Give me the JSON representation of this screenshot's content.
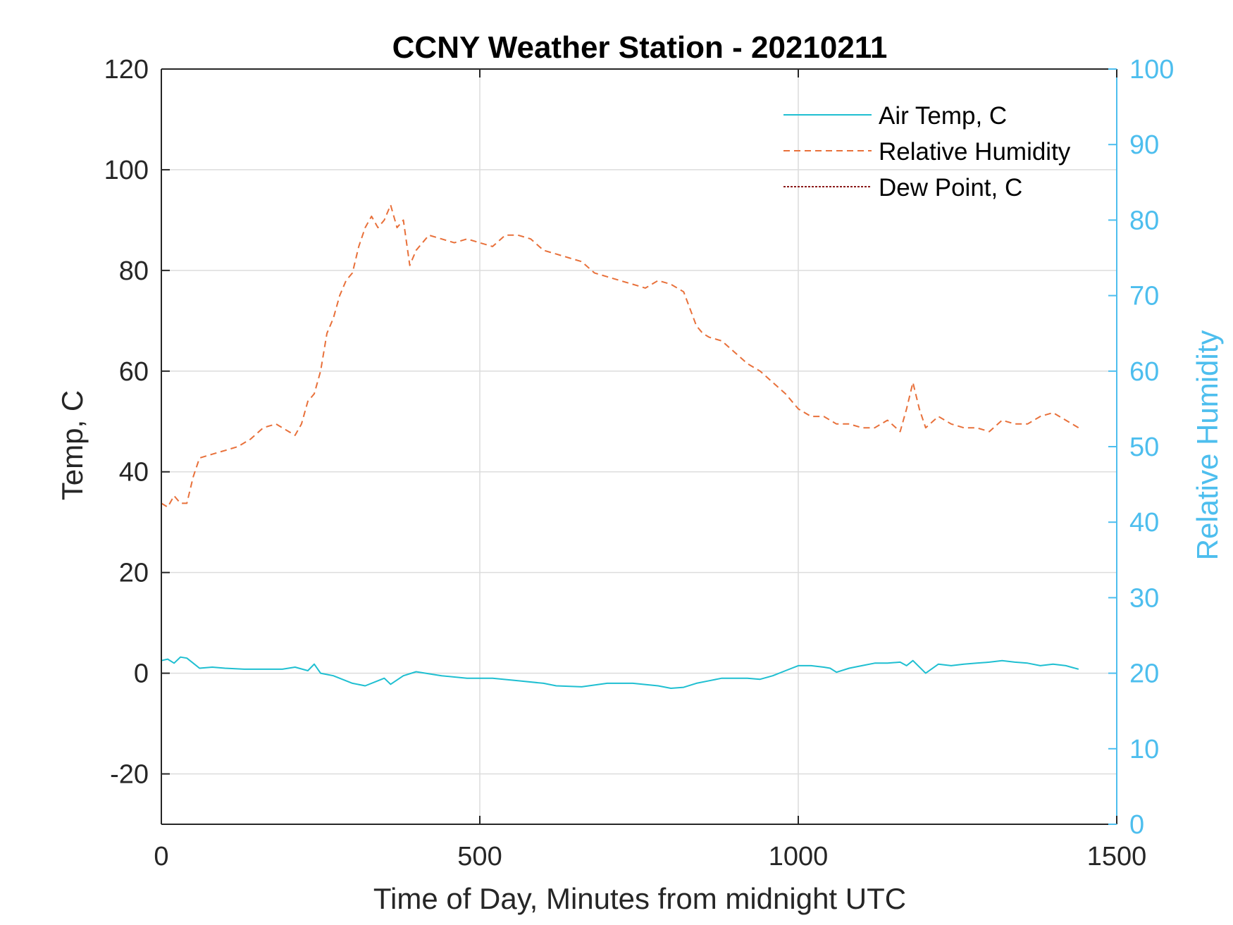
{
  "chart_data": {
    "type": "line",
    "title": "CCNY Weather Station - 20210211",
    "xlabel": "Time of Day, Minutes from midnight UTC",
    "ylabel": "Temp, C",
    "y2label": "Relative Humidity",
    "xlim": [
      0,
      1500
    ],
    "ylim": [
      -30,
      120
    ],
    "y2lim": [
      0,
      100
    ],
    "xticks": [
      0,
      500,
      1000,
      1500
    ],
    "yticks": [
      -20,
      0,
      20,
      40,
      60,
      80,
      100,
      120
    ],
    "y2ticks": [
      0,
      10,
      20,
      30,
      40,
      50,
      60,
      70,
      80,
      90,
      100
    ],
    "grid": true,
    "legend_position": "top-right",
    "colors": {
      "air_temp": "#1fbfd1",
      "relative_humidity": "#e8703a",
      "dew_point": "#8b1a1a",
      "right_axis": "#4dbeee",
      "axis": "#262626"
    },
    "series": [
      {
        "name": "Air Temp, C",
        "axis": "left",
        "style": "solid",
        "x": [
          0,
          10,
          20,
          30,
          40,
          50,
          60,
          80,
          100,
          130,
          160,
          190,
          210,
          230,
          240,
          250,
          270,
          300,
          320,
          340,
          350,
          360,
          380,
          400,
          440,
          480,
          520,
          560,
          600,
          620,
          660,
          700,
          740,
          780,
          800,
          820,
          840,
          860,
          880,
          920,
          940,
          960,
          980,
          1000,
          1020,
          1040,
          1050,
          1060,
          1080,
          1100,
          1120,
          1140,
          1160,
          1170,
          1180,
          1200,
          1220,
          1240,
          1260,
          1280,
          1300,
          1320,
          1340,
          1360,
          1380,
          1400,
          1420,
          1440
        ],
        "values": [
          2.5,
          2.8,
          2.0,
          3.2,
          3.0,
          2.0,
          1.0,
          1.2,
          1.0,
          0.8,
          0.8,
          0.8,
          1.2,
          0.5,
          1.8,
          0.0,
          -0.5,
          -2.0,
          -2.5,
          -1.5,
          -1.0,
          -2.2,
          -0.5,
          0.3,
          -0.5,
          -1.0,
          -1.0,
          -1.5,
          -2.0,
          -2.5,
          -2.7,
          -2.0,
          -2.0,
          -2.5,
          -3.0,
          -2.8,
          -2.0,
          -1.5,
          -1.0,
          -1.0,
          -1.2,
          -0.5,
          0.5,
          1.5,
          1.5,
          1.2,
          1.0,
          0.2,
          1.0,
          1.5,
          2.0,
          2.0,
          2.2,
          1.5,
          2.5,
          0.0,
          1.8,
          1.5,
          1.8,
          2.0,
          2.2,
          2.5,
          2.2,
          2.0,
          1.5,
          1.8,
          1.5,
          0.8
        ]
      },
      {
        "name": "Relative Humidity",
        "axis": "right",
        "style": "dashed",
        "x": [
          0,
          10,
          20,
          30,
          40,
          50,
          60,
          80,
          100,
          120,
          140,
          160,
          180,
          200,
          210,
          220,
          230,
          240,
          250,
          260,
          270,
          280,
          290,
          300,
          310,
          320,
          330,
          340,
          350,
          360,
          370,
          380,
          390,
          400,
          420,
          440,
          460,
          480,
          500,
          520,
          540,
          560,
          580,
          600,
          620,
          640,
          660,
          680,
          700,
          720,
          740,
          760,
          780,
          800,
          820,
          840,
          850,
          860,
          880,
          900,
          920,
          940,
          960,
          980,
          1000,
          1020,
          1040,
          1060,
          1080,
          1100,
          1120,
          1140,
          1160,
          1170,
          1180,
          1190,
          1200,
          1220,
          1240,
          1260,
          1280,
          1300,
          1320,
          1340,
          1360,
          1380,
          1400,
          1420,
          1440
        ],
        "values": [
          42.5,
          42.0,
          43.5,
          42.5,
          42.5,
          46.0,
          48.5,
          49.0,
          49.5,
          50.0,
          51.0,
          52.5,
          53.0,
          52.0,
          51.5,
          53.0,
          56.0,
          57.0,
          60.0,
          65.0,
          67.0,
          70.0,
          72.0,
          73.0,
          76.5,
          79.0,
          80.5,
          79.0,
          80.0,
          82.0,
          79.0,
          80.0,
          74.0,
          76.0,
          78.0,
          77.5,
          77.0,
          77.5,
          77.0,
          76.5,
          78.0,
          78.0,
          77.5,
          76.0,
          75.5,
          75.0,
          74.5,
          73.0,
          72.5,
          72.0,
          71.5,
          71.0,
          72.0,
          71.5,
          70.5,
          66.0,
          65.0,
          64.5,
          64.0,
          62.5,
          61.0,
          60.0,
          58.5,
          57.0,
          55.0,
          54.0,
          54.0,
          53.0,
          53.0,
          52.5,
          52.5,
          53.5,
          52.0,
          55.0,
          58.5,
          55.0,
          52.5,
          54.0,
          53.0,
          52.5,
          52.5,
          52.0,
          53.5,
          53.0,
          53.0,
          54.0,
          54.5,
          53.5,
          52.5
        ]
      },
      {
        "name": "Dew Point, C",
        "axis": "left",
        "style": "dotted",
        "x": [],
        "values": []
      }
    ]
  }
}
